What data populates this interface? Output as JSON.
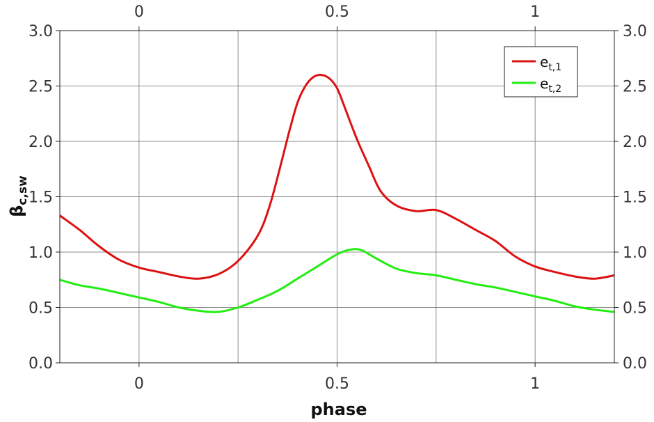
{
  "chart_data": {
    "type": "line",
    "title": "",
    "xlabel": "phase",
    "ylabel": "β",
    "ylabel_sub": "c,sw",
    "xlim": [
      -0.2,
      1.2
    ],
    "ylim": [
      0.0,
      3.0
    ],
    "grid": true,
    "legend_position": "top-right",
    "x_ticks": [
      0,
      0.5,
      1
    ],
    "x_tick_labels": [
      "0",
      "0.5",
      "1"
    ],
    "y_ticks": [
      0.0,
      0.5,
      1.0,
      1.5,
      2.0,
      2.5,
      3.0
    ],
    "y_tick_labels": [
      "0.0",
      "0.5",
      "1.0",
      "1.5",
      "2.0",
      "2.5",
      "3.0"
    ],
    "series": [
      {
        "name": "e",
        "name_sub": "t,1",
        "color": "#dd1111",
        "x": [
          -0.2,
          -0.15,
          -0.1,
          -0.05,
          0.0,
          0.05,
          0.1,
          0.15,
          0.2,
          0.25,
          0.3,
          0.33,
          0.36,
          0.38,
          0.4,
          0.42,
          0.44,
          0.46,
          0.48,
          0.5,
          0.52,
          0.55,
          0.58,
          0.61,
          0.65,
          0.7,
          0.75,
          0.8,
          0.85,
          0.9,
          0.95,
          1.0,
          1.05,
          1.1,
          1.15,
          1.2
        ],
        "y": [
          1.33,
          1.2,
          1.05,
          0.93,
          0.86,
          0.82,
          0.78,
          0.76,
          0.8,
          0.92,
          1.15,
          1.42,
          1.82,
          2.1,
          2.35,
          2.5,
          2.58,
          2.6,
          2.57,
          2.48,
          2.3,
          2.02,
          1.78,
          1.55,
          1.42,
          1.37,
          1.38,
          1.3,
          1.2,
          1.1,
          0.96,
          0.87,
          0.82,
          0.78,
          0.76,
          0.79
        ]
      },
      {
        "name": "e",
        "name_sub": "t,2",
        "color": "#22ee11",
        "x": [
          -0.2,
          -0.15,
          -0.1,
          -0.05,
          0.0,
          0.05,
          0.1,
          0.15,
          0.2,
          0.25,
          0.3,
          0.35,
          0.4,
          0.45,
          0.5,
          0.53,
          0.56,
          0.6,
          0.65,
          0.7,
          0.75,
          0.8,
          0.85,
          0.9,
          0.95,
          1.0,
          1.05,
          1.1,
          1.15,
          1.2
        ],
        "y": [
          0.75,
          0.7,
          0.67,
          0.63,
          0.59,
          0.55,
          0.5,
          0.47,
          0.46,
          0.5,
          0.57,
          0.65,
          0.76,
          0.87,
          0.98,
          1.02,
          1.02,
          0.94,
          0.85,
          0.81,
          0.79,
          0.75,
          0.71,
          0.68,
          0.64,
          0.6,
          0.56,
          0.51,
          0.48,
          0.46
        ]
      }
    ]
  }
}
